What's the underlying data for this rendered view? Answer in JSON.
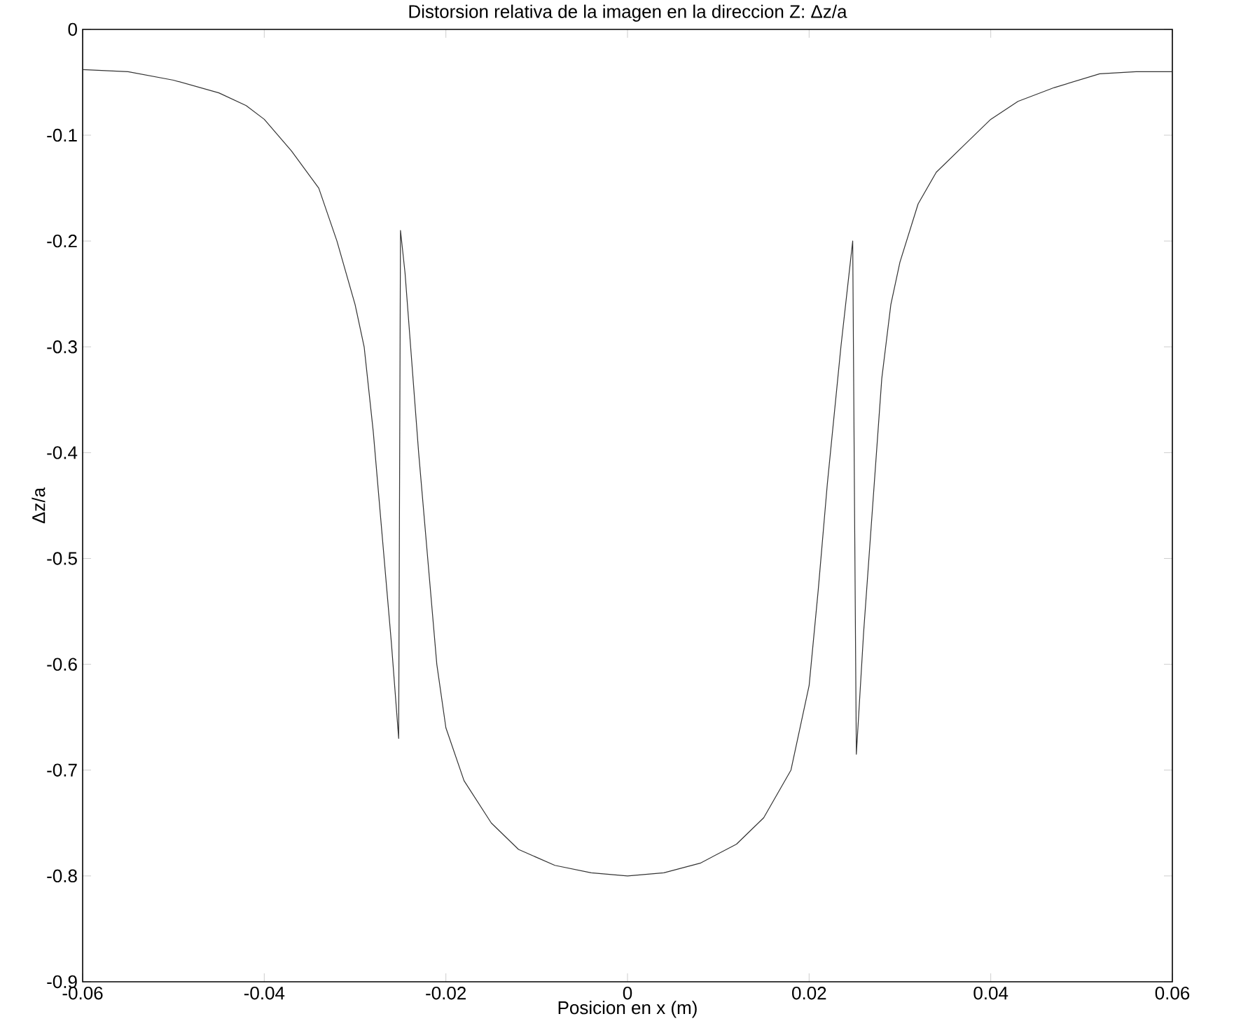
{
  "chart_data": {
    "type": "line",
    "title": "Distorsion relativa de la imagen en la direccion Z: Δz/a",
    "xlabel": "Posicion en x (m)",
    "ylabel": "Δz/a",
    "xlim": [
      -0.06,
      0.06
    ],
    "ylim": [
      -0.9,
      0
    ],
    "xticks": [
      -0.06,
      -0.04,
      -0.02,
      0,
      0.02,
      0.04,
      0.06
    ],
    "yticks": [
      -0.9,
      -0.8,
      -0.7,
      -0.6,
      -0.5,
      -0.4,
      -0.3,
      -0.2,
      -0.1,
      0
    ],
    "marker": "none",
    "line_style": "solid",
    "series": [
      {
        "color": "#333333",
        "x": [
          -0.06,
          -0.055,
          -0.05,
          -0.045,
          -0.042,
          -0.04,
          -0.037,
          -0.034,
          -0.032,
          -0.03,
          -0.029,
          -0.028,
          -0.027,
          -0.026,
          -0.0252,
          -0.025,
          -0.0245,
          -0.023,
          -0.022,
          -0.021,
          -0.02,
          -0.018,
          -0.015,
          -0.012,
          -0.008,
          -0.004,
          0,
          0.004,
          0.008,
          0.012,
          0.015,
          0.018,
          0.02,
          0.021,
          0.022,
          0.0235,
          0.0248,
          0.025,
          0.0252,
          0.026,
          0.027,
          0.028,
          0.029,
          0.03,
          0.032,
          0.034,
          0.037,
          0.04,
          0.043,
          0.047,
          0.052,
          0.056,
          0.06
        ],
        "values": [
          -0.038,
          -0.04,
          -0.048,
          -0.06,
          -0.072,
          -0.085,
          -0.115,
          -0.15,
          -0.2,
          -0.26,
          -0.3,
          -0.38,
          -0.48,
          -0.58,
          -0.67,
          -0.19,
          -0.23,
          -0.4,
          -0.5,
          -0.6,
          -0.66,
          -0.71,
          -0.75,
          -0.775,
          -0.79,
          -0.797,
          -0.8,
          -0.797,
          -0.788,
          -0.77,
          -0.745,
          -0.7,
          -0.62,
          -0.53,
          -0.43,
          -0.3,
          -0.2,
          -0.45,
          -0.685,
          -0.57,
          -0.45,
          -0.33,
          -0.26,
          -0.22,
          -0.165,
          -0.135,
          -0.11,
          -0.085,
          -0.068,
          -0.055,
          -0.042,
          -0.04,
          -0.04
        ]
      }
    ]
  }
}
